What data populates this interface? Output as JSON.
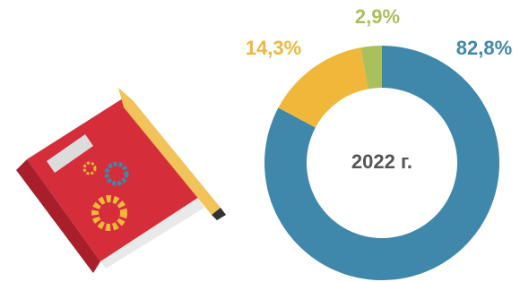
{
  "chart_data": {
    "type": "donut",
    "values": [
      82.8,
      14.3,
      2.9
    ],
    "value_labels": [
      "82,8%",
      "14,3%",
      "2,9%"
    ],
    "colors": [
      "#3f87ab",
      "#f0b73b",
      "#a9c05c"
    ],
    "center_label": "2022 г."
  }
}
